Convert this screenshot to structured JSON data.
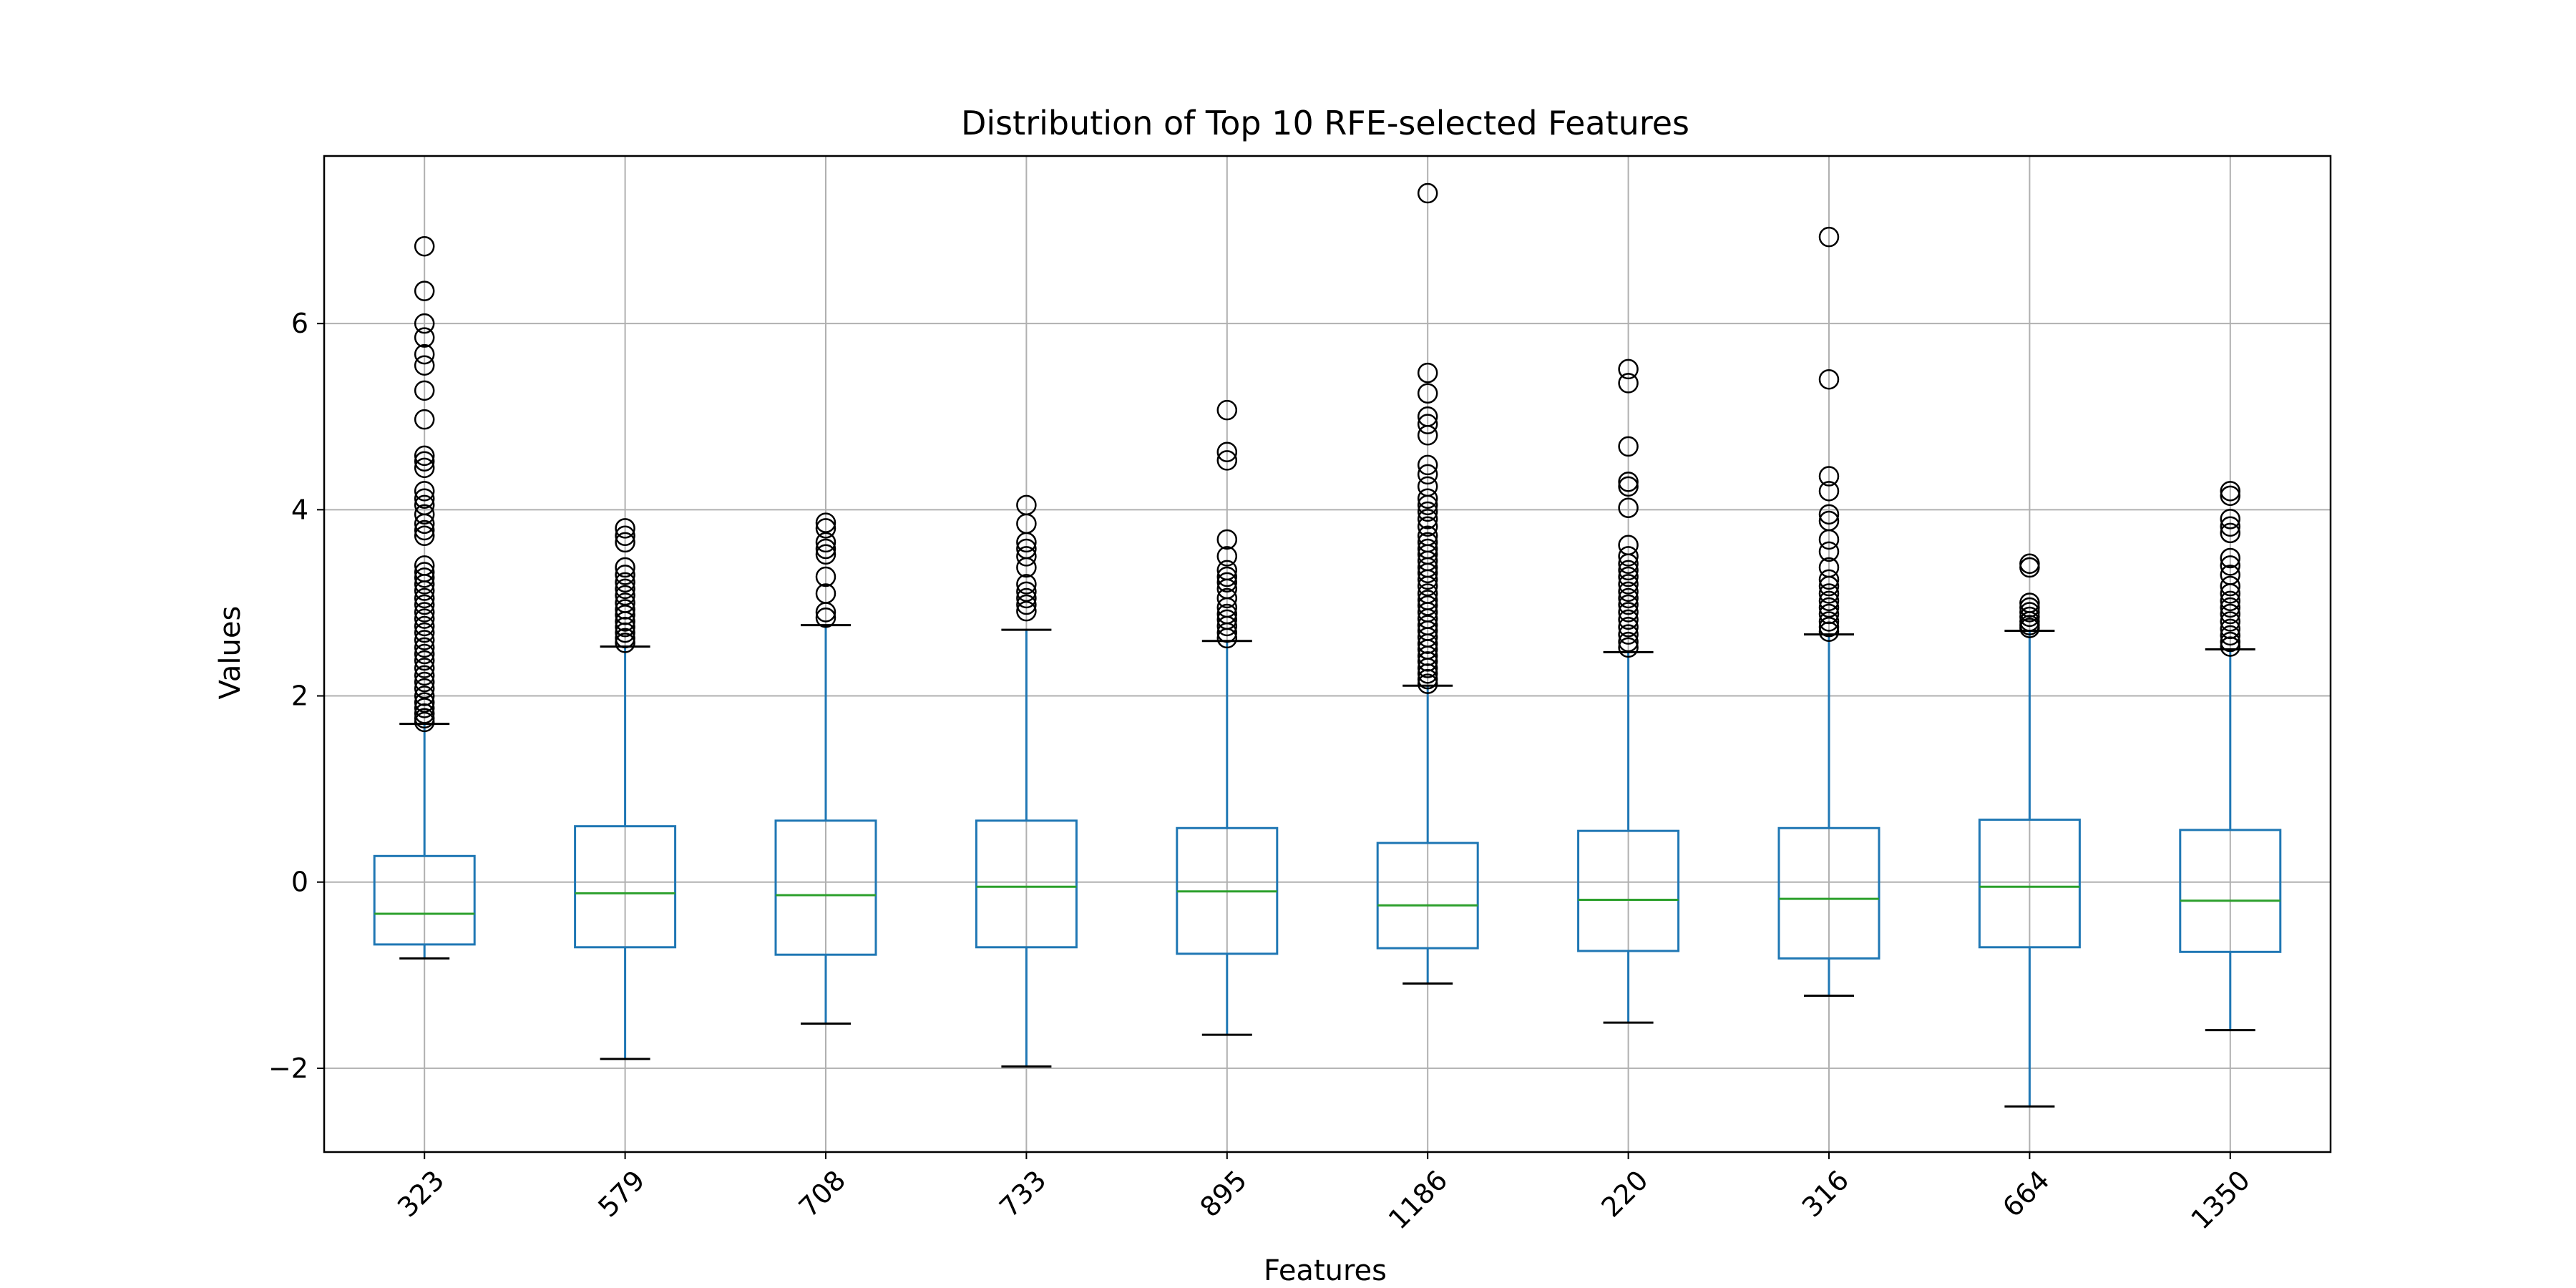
{
  "chart_data": {
    "type": "box",
    "title": "Distribution of Top 10 RFE-selected Features",
    "xlabel": "Features",
    "ylabel": "Values",
    "ylim": [
      -2.9,
      7.8
    ],
    "yticks": [
      -2,
      0,
      2,
      4,
      6
    ],
    "ytick_labels": [
      "−2",
      "0",
      "2",
      "4",
      "6"
    ],
    "grid": true,
    "xtick_rotation": "45",
    "colors": {
      "box": "#1f77b4",
      "median": "#2ca02c",
      "whisker_cap": "#000000",
      "outlier": "#000000",
      "grid": "#b0b0b0",
      "frame": "#000000"
    },
    "categories": [
      "323",
      "579",
      "708",
      "733",
      "895",
      "1186",
      "220",
      "316",
      "664",
      "1350"
    ],
    "boxes": [
      {
        "label": "323",
        "whislo": -0.82,
        "q1": -0.67,
        "med": -0.34,
        "q3": 0.28,
        "whishi": 1.7,
        "fliers": [
          6.83,
          6.35,
          6.0,
          5.85,
          5.67,
          5.55,
          5.28,
          4.97,
          4.58,
          4.52,
          4.45,
          4.2,
          4.12,
          4.05,
          3.95,
          3.85,
          3.78,
          3.72,
          3.4,
          3.33,
          3.27,
          3.2,
          3.13,
          3.05,
          2.98,
          2.9,
          2.83,
          2.75,
          2.68,
          2.6,
          2.52,
          2.45,
          2.38,
          2.3,
          2.22,
          2.15,
          2.08,
          2.0,
          1.93,
          1.87,
          1.81,
          1.76,
          1.72
        ]
      },
      {
        "label": "579",
        "whislo": -1.9,
        "q1": -0.7,
        "med": -0.12,
        "q3": 0.6,
        "whishi": 2.53,
        "fliers": [
          3.8,
          3.72,
          3.65,
          3.38,
          3.3,
          3.22,
          3.15,
          3.08,
          3.0,
          2.93,
          2.87,
          2.8,
          2.74,
          2.68,
          2.62,
          2.57
        ]
      },
      {
        "label": "708",
        "whislo": -1.52,
        "q1": -0.78,
        "med": -0.14,
        "q3": 0.66,
        "whishi": 2.76,
        "fliers": [
          3.86,
          3.8,
          3.65,
          3.58,
          3.52,
          3.28,
          3.1,
          2.9,
          2.84
        ]
      },
      {
        "label": "733",
        "whislo": -1.98,
        "q1": -0.7,
        "med": -0.05,
        "q3": 0.66,
        "whishi": 2.71,
        "fliers": [
          4.05,
          3.85,
          3.65,
          3.58,
          3.5,
          3.38,
          3.2,
          3.12,
          3.05,
          2.98,
          2.91
        ]
      },
      {
        "label": "895",
        "whislo": -1.64,
        "q1": -0.77,
        "med": -0.1,
        "q3": 0.58,
        "whishi": 2.59,
        "fliers": [
          5.07,
          4.62,
          4.53,
          3.68,
          3.5,
          3.35,
          3.28,
          3.22,
          3.15,
          3.05,
          2.95,
          2.88,
          2.82,
          2.75,
          2.68,
          2.62
        ]
      },
      {
        "label": "1186",
        "whislo": -1.09,
        "q1": -0.71,
        "med": -0.25,
        "q3": 0.42,
        "whishi": 2.11,
        "fliers": [
          7.4,
          5.47,
          5.25,
          5.0,
          4.92,
          4.8,
          4.48,
          4.38,
          4.25,
          4.12,
          4.05,
          3.98,
          3.9,
          3.82,
          3.72,
          3.65,
          3.58,
          3.52,
          3.45,
          3.38,
          3.32,
          3.25,
          3.18,
          3.1,
          3.03,
          2.97,
          2.9,
          2.83,
          2.76,
          2.7,
          2.63,
          2.56,
          2.5,
          2.43,
          2.37,
          2.3,
          2.24,
          2.18,
          2.13
        ]
      },
      {
        "label": "220",
        "whislo": -1.51,
        "q1": -0.74,
        "med": -0.19,
        "q3": 0.55,
        "whishi": 2.47,
        "fliers": [
          5.51,
          5.36,
          4.68,
          4.3,
          4.25,
          4.02,
          3.62,
          3.5,
          3.42,
          3.35,
          3.28,
          3.2,
          3.12,
          3.05,
          2.98,
          2.9,
          2.82,
          2.74,
          2.66,
          2.58,
          2.52
        ]
      },
      {
        "label": "316",
        "whislo": -1.22,
        "q1": -0.82,
        "med": -0.18,
        "q3": 0.58,
        "whishi": 2.66,
        "fliers": [
          6.93,
          5.4,
          4.36,
          4.2,
          3.95,
          3.88,
          3.68,
          3.55,
          3.38,
          3.25,
          3.18,
          3.1,
          3.02,
          2.95,
          2.88,
          2.8,
          2.74,
          2.69
        ]
      },
      {
        "label": "664",
        "whislo": -2.41,
        "q1": -0.7,
        "med": -0.05,
        "q3": 0.67,
        "whishi": 2.7,
        "fliers": [
          3.42,
          3.38,
          3.0,
          2.95,
          2.9,
          2.85,
          2.8,
          2.76,
          2.73
        ]
      },
      {
        "label": "1350",
        "whislo": -1.59,
        "q1": -0.75,
        "med": -0.2,
        "q3": 0.56,
        "whishi": 2.5,
        "fliers": [
          4.2,
          4.15,
          3.9,
          3.82,
          3.75,
          3.48,
          3.4,
          3.3,
          3.18,
          3.1,
          3.02,
          2.95,
          2.88,
          2.8,
          2.72,
          2.65,
          2.58,
          2.53
        ]
      }
    ]
  }
}
